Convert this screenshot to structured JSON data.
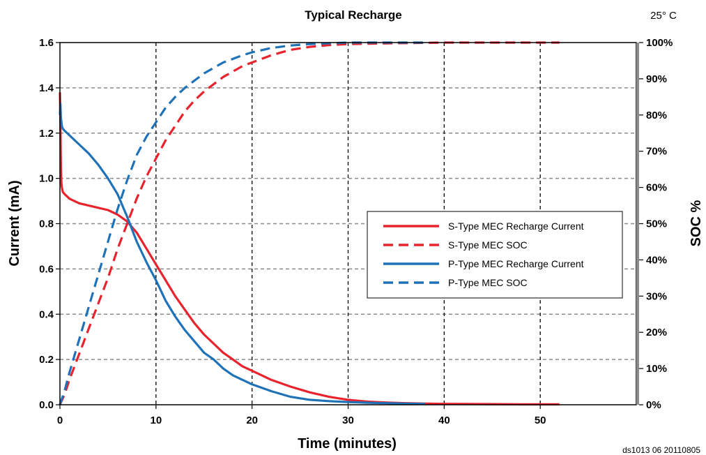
{
  "chart_data": {
    "type": "line",
    "title": "Typical Recharge",
    "temperature_note": "25° C",
    "doc_id": "ds1013 06 20110805",
    "xlabel": "Time (minutes)",
    "ylabel": "Current (mA)",
    "y2label": "SOC %",
    "xlim": [
      0,
      60
    ],
    "ylim": [
      0,
      1.6
    ],
    "y2lim": [
      0,
      100
    ],
    "x_ticks": [
      "0",
      "10",
      "20",
      "30",
      "40",
      "50"
    ],
    "x_tick_values": [
      0,
      10,
      20,
      30,
      40,
      50
    ],
    "y_ticks": [
      "0.0",
      "0.2",
      "0.4",
      "0.6",
      "0.8",
      "1.0",
      "1.2",
      "1.4",
      "1.6"
    ],
    "y_tick_values": [
      0,
      0.2,
      0.4,
      0.6,
      0.8,
      1.0,
      1.2,
      1.4,
      1.6
    ],
    "y2_ticks": [
      "0%",
      "10%",
      "20%",
      "30%",
      "40%",
      "50%",
      "60%",
      "70%",
      "80%",
      "90%",
      "100%"
    ],
    "y2_tick_values": [
      0,
      10,
      20,
      30,
      40,
      50,
      60,
      70,
      80,
      90,
      100
    ],
    "grid": true,
    "legend_position": "center-right",
    "series": [
      {
        "name": "S-Type MEC Recharge Current",
        "axis": "left",
        "style": "solid",
        "color": "#e8232d",
        "x": [
          0,
          0.05,
          0.1,
          0.15,
          0.2,
          0.3,
          0.5,
          1,
          2,
          3,
          4,
          5,
          6,
          7,
          8,
          9,
          10,
          11,
          12,
          13,
          14,
          15,
          16,
          17,
          18,
          19,
          20,
          22,
          24,
          26,
          28,
          30,
          32,
          34,
          36,
          38,
          40,
          44,
          48,
          52
        ],
        "y": [
          1.38,
          1.25,
          1.05,
          0.98,
          0.96,
          0.94,
          0.93,
          0.91,
          0.89,
          0.88,
          0.87,
          0.86,
          0.84,
          0.81,
          0.76,
          0.69,
          0.62,
          0.55,
          0.48,
          0.42,
          0.36,
          0.31,
          0.27,
          0.23,
          0.2,
          0.17,
          0.15,
          0.11,
          0.08,
          0.055,
          0.035,
          0.022,
          0.014,
          0.01,
          0.007,
          0.005,
          0.004,
          0.003,
          0.002,
          0.002
        ]
      },
      {
        "name": "S-Type MEC SOC",
        "axis": "right",
        "style": "dashed",
        "color": "#e8232d",
        "x": [
          0,
          0.5,
          1,
          2,
          3,
          4,
          5,
          6,
          7,
          8,
          9,
          10,
          11,
          12,
          13,
          14,
          15,
          16,
          17,
          18,
          19,
          20,
          22,
          24,
          26,
          28,
          30,
          35,
          40,
          45,
          50,
          52
        ],
        "y": [
          0,
          3,
          7,
          14,
          21,
          28,
          35,
          43,
          50,
          57,
          63,
          68,
          73,
          77,
          81,
          84,
          86.5,
          88.5,
          90.5,
          92,
          93.5,
          94.5,
          96.5,
          98,
          98.8,
          99.3,
          99.6,
          99.8,
          100,
          100,
          100,
          100
        ]
      },
      {
        "name": "P-Type MEC Recharge Current",
        "axis": "left",
        "style": "solid",
        "color": "#1f72b8",
        "x": [
          0,
          0.05,
          0.1,
          0.2,
          0.3,
          0.5,
          1,
          2,
          3,
          4,
          5,
          6,
          7,
          8,
          9,
          10,
          11,
          12,
          13,
          14,
          15,
          16,
          17,
          18,
          19,
          20,
          22,
          24,
          26,
          28,
          30,
          32,
          34,
          36,
          38
        ],
        "y": [
          1.28,
          1.33,
          1.27,
          1.23,
          1.22,
          1.21,
          1.19,
          1.15,
          1.11,
          1.06,
          1.0,
          0.93,
          0.83,
          0.72,
          0.63,
          0.55,
          0.46,
          0.39,
          0.33,
          0.28,
          0.23,
          0.2,
          0.16,
          0.13,
          0.11,
          0.09,
          0.06,
          0.035,
          0.022,
          0.016,
          0.012,
          0.009,
          0.007,
          0.005,
          0.004
        ]
      },
      {
        "name": "P-Type MEC SOC",
        "axis": "right",
        "style": "dashed",
        "color": "#1f72b8",
        "x": [
          0,
          0.5,
          1,
          2,
          3,
          4,
          5,
          6,
          7,
          8,
          9,
          10,
          11,
          12,
          13,
          14,
          15,
          16,
          17,
          18,
          19,
          20,
          22,
          24,
          26,
          28,
          30,
          32,
          35,
          38
        ],
        "y": [
          0,
          4,
          9,
          18,
          27,
          36,
          45,
          54,
          62,
          69,
          74,
          78,
          82,
          85,
          87.5,
          89.5,
          91.5,
          93,
          94.5,
          95.5,
          96.5,
          97.3,
          98.5,
          99.2,
          99.6,
          99.8,
          100,
          100,
          100,
          100
        ]
      }
    ]
  }
}
